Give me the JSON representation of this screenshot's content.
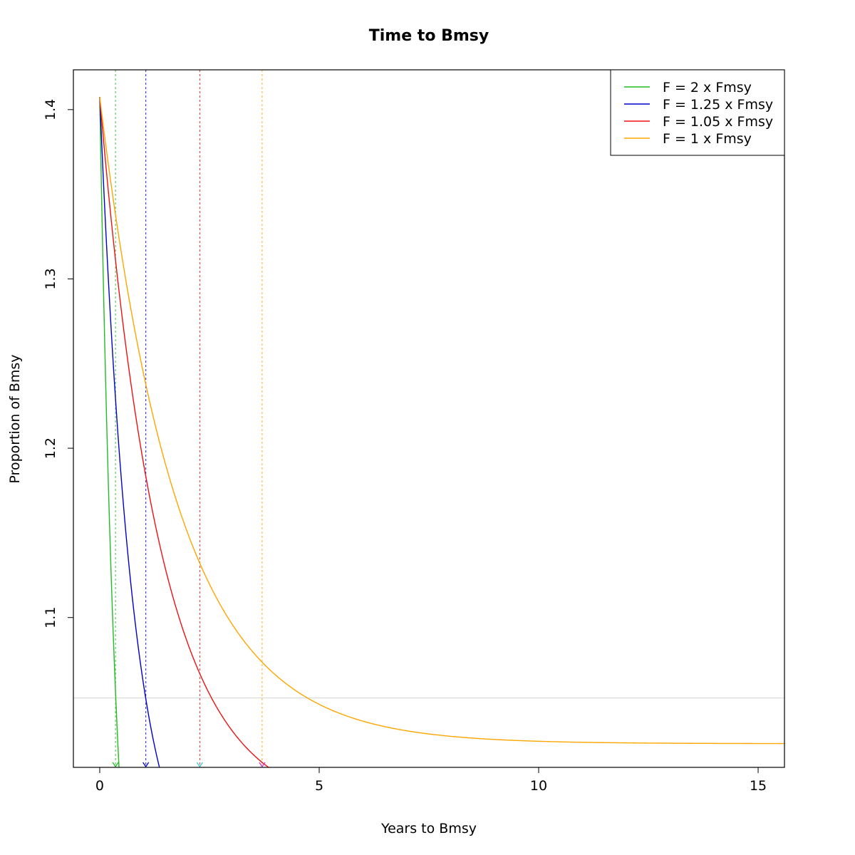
{
  "chart_data": {
    "type": "line",
    "title": "Time to Bmsy",
    "xlabel": "Years to Bmsy",
    "ylabel": "Proportion of Bmsy",
    "xlim": [
      -0.6,
      15.6
    ],
    "ylim": [
      1.0115,
      1.4235
    ],
    "x_ticks": [
      0,
      5,
      10,
      15
    ],
    "y_ticks": [
      1.1,
      1.2,
      1.3,
      1.4
    ],
    "grid": false,
    "legend_position": "top-right",
    "threshold_line": {
      "y": 1.0525,
      "color": "#d3d3d3"
    },
    "start": {
      "x": 0,
      "y": 1.4075
    },
    "series": [
      {
        "name": "F = 2 x Fmsy",
        "color": "#22bb22",
        "asymptote": 0.8,
        "rate": 2.4,
        "vline_x": 0.36,
        "marker_color": "#22bb22"
      },
      {
        "name": "F = 1.25 x Fmsy",
        "color": "#0000cc",
        "asymptote": 0.93,
        "rate": 1.3,
        "vline_x": 1.05,
        "marker_color": "#0000cc"
      },
      {
        "name": "F = 1.05 x Fmsy",
        "color": "#ee1111",
        "asymptote": 0.985,
        "rate": 0.72,
        "vline_x": 2.28,
        "marker_color": "#33cccc"
      },
      {
        "name": "F = 1 x Fmsy",
        "color": "#ffa500",
        "asymptote": 1.0255,
        "rate": 0.56,
        "vline_x": 3.7,
        "marker_color": "#cc33cc"
      }
    ]
  }
}
